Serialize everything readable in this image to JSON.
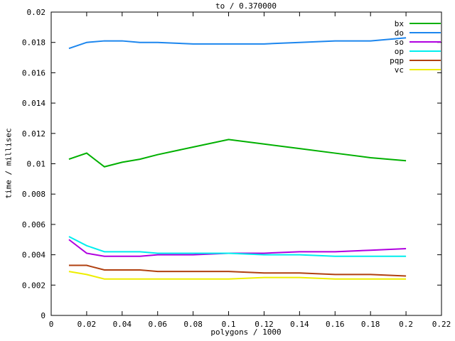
{
  "chart_data": {
    "type": "line",
    "title": "to / 0.370000",
    "xlabel": "polygons / 1000",
    "ylabel": "time / millisec",
    "xlim": [
      0,
      0.22
    ],
    "ylim": [
      0,
      0.02
    ],
    "xticks": [
      0,
      0.02,
      0.04,
      0.06,
      0.08,
      0.1,
      0.12,
      0.14,
      0.16,
      0.18,
      0.2,
      0.22
    ],
    "yticks": [
      0,
      0.002,
      0.004,
      0.006,
      0.008,
      0.01,
      0.012,
      0.014,
      0.016,
      0.018,
      0.02
    ],
    "grid": false,
    "legend_position": "top-right-inside",
    "x": [
      0.01,
      0.02,
      0.03,
      0.04,
      0.05,
      0.06,
      0.08,
      0.1,
      0.12,
      0.14,
      0.16,
      0.18,
      0.2
    ],
    "series": [
      {
        "name": "bx",
        "color": "#00B000",
        "values": [
          0.0103,
          0.0107,
          0.0098,
          0.0101,
          0.0103,
          0.0106,
          0.0111,
          0.0116,
          0.0113,
          0.011,
          0.0107,
          0.0104,
          0.0102
        ]
      },
      {
        "name": "do",
        "color": "#1C86EE",
        "values": [
          0.0176,
          0.018,
          0.0181,
          0.0181,
          0.018,
          0.018,
          0.0179,
          0.0179,
          0.0179,
          0.018,
          0.0181,
          0.0181,
          0.0183
        ]
      },
      {
        "name": "so",
        "color": "#B000E0",
        "values": [
          0.005,
          0.0041,
          0.0039,
          0.0039,
          0.0039,
          0.004,
          0.004,
          0.0041,
          0.0041,
          0.0042,
          0.0042,
          0.0043,
          0.0044
        ]
      },
      {
        "name": "op",
        "color": "#00EEEE",
        "values": [
          0.0052,
          0.0046,
          0.0042,
          0.0042,
          0.0042,
          0.0041,
          0.0041,
          0.0041,
          0.004,
          0.004,
          0.0039,
          0.0039,
          0.0039
        ]
      },
      {
        "name": "pqp",
        "color": "#B04010",
        "values": [
          0.0033,
          0.0033,
          0.003,
          0.003,
          0.003,
          0.0029,
          0.0029,
          0.0029,
          0.0028,
          0.0028,
          0.0027,
          0.0027,
          0.0026
        ]
      },
      {
        "name": "vc",
        "color": "#EEEE00",
        "values": [
          0.0029,
          0.0027,
          0.0024,
          0.0024,
          0.0024,
          0.0024,
          0.0024,
          0.0024,
          0.0025,
          0.0025,
          0.0024,
          0.0024,
          0.0024
        ]
      }
    ]
  }
}
